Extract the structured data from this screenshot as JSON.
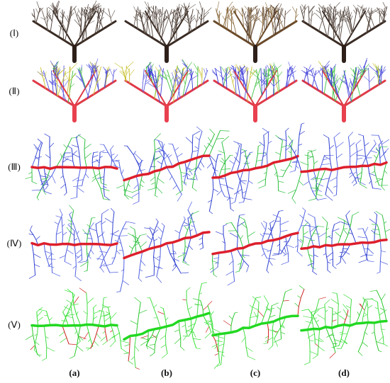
{
  "rows": [
    "(Ⅰ)",
    "(Ⅱ)",
    "(Ⅲ)",
    "(Ⅳ)",
    "(Ⅴ)"
  ],
  "columns": [
    "(a)",
    "(b)",
    "(c)",
    "(d)"
  ]
}
